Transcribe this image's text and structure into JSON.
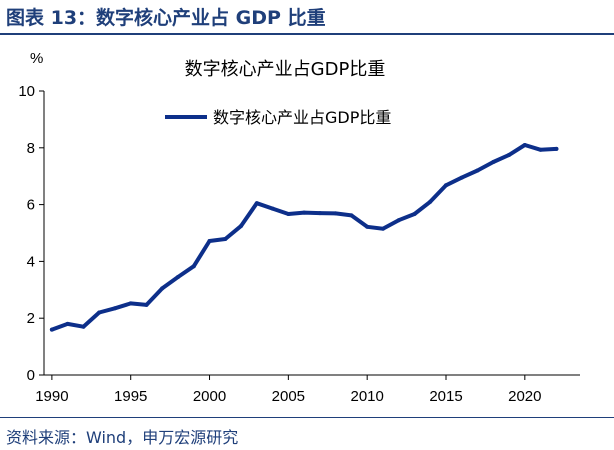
{
  "header": {
    "figure_title": "图表 13：数字核心产业占 GDP 比重"
  },
  "footer": {
    "source": "资料来源：Wind，申万宏源研究"
  },
  "chart_data": {
    "type": "line",
    "title": "数字核心产业占GDP比重",
    "ylabel": "%",
    "xlabel": "",
    "ylim": [
      0,
      10
    ],
    "yticks": [
      0,
      2,
      4,
      6,
      8,
      10
    ],
    "xlim": [
      1989.5,
      2023.5
    ],
    "xticks": [
      1990,
      1995,
      2000,
      2005,
      2010,
      2015,
      2020
    ],
    "grid": false,
    "legend": "top",
    "color": "#0d2f8a",
    "series": [
      {
        "name": "数字核心产业占GDP比重",
        "x": [
          1990,
          1991,
          1992,
          1993,
          1994,
          1995,
          1996,
          1997,
          1998,
          1999,
          2000,
          2001,
          2002,
          2003,
          2004,
          2005,
          2006,
          2007,
          2008,
          2009,
          2010,
          2011,
          2012,
          2013,
          2014,
          2015,
          2016,
          2017,
          2018,
          2019,
          2020,
          2021,
          2022
        ],
        "values": [
          1.6,
          1.8,
          1.7,
          2.2,
          2.35,
          2.52,
          2.47,
          3.05,
          3.45,
          3.83,
          4.72,
          4.79,
          5.25,
          6.05,
          5.86,
          5.67,
          5.72,
          5.7,
          5.69,
          5.62,
          5.22,
          5.15,
          5.45,
          5.67,
          6.1,
          6.68,
          6.95,
          7.2,
          7.5,
          7.75,
          8.1,
          7.93,
          7.96
        ]
      }
    ]
  }
}
